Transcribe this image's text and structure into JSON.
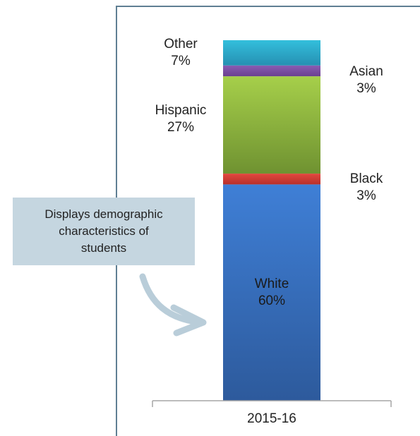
{
  "callout": {
    "lines": [
      "Displays demographic",
      "characteristics of",
      "students"
    ]
  },
  "chart_data": {
    "type": "bar",
    "stacked": true,
    "categories": [
      "2015-16"
    ],
    "series": [
      {
        "name": "White",
        "values": [
          60
        ],
        "label_pct": "60%",
        "color": "#3a73c4"
      },
      {
        "name": "Black",
        "values": [
          3
        ],
        "label_pct": "3%",
        "color": "#d93f37"
      },
      {
        "name": "Hispanic",
        "values": [
          27
        ],
        "label_pct": "27%",
        "color": "#93bd3e"
      },
      {
        "name": "Asian",
        "values": [
          3
        ],
        "label_pct": "3%",
        "color": "#7b4fa2"
      },
      {
        "name": "Other",
        "values": [
          7
        ],
        "label_pct": "7%",
        "color": "#2fb3cf"
      }
    ],
    "ylim": [
      0,
      100
    ]
  }
}
